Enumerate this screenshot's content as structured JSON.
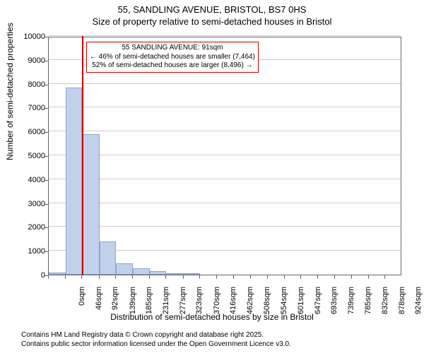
{
  "title": {
    "line1": "55, SANDLING AVENUE, BRISTOL, BS7 0HS",
    "line2": "Size of property relative to semi-detached houses in Bristol"
  },
  "chart": {
    "type": "histogram",
    "xlabel": "Distribution of semi-detached houses by size in Bristol",
    "ylabel": "Number of semi-detached properties",
    "ylim": [
      0,
      10000
    ],
    "ytick_step": 1000,
    "yticks": [
      0,
      1000,
      2000,
      3000,
      4000,
      5000,
      6000,
      7000,
      8000,
      9000,
      10000
    ],
    "xlim": [
      0,
      970
    ],
    "xticks": [
      "0sqm",
      "46sqm",
      "92sqm",
      "139sqm",
      "185sqm",
      "231sqm",
      "277sqm",
      "323sqm",
      "370sqm",
      "416sqm",
      "462sqm",
      "508sqm",
      "554sqm",
      "601sqm",
      "647sqm",
      "693sqm",
      "739sqm",
      "785sqm",
      "832sqm",
      "878sqm",
      "924sqm"
    ],
    "xtick_positions": [
      0,
      46,
      92,
      139,
      185,
      231,
      277,
      323,
      370,
      416,
      462,
      508,
      554,
      601,
      647,
      693,
      739,
      785,
      832,
      878,
      924
    ],
    "bars": [
      {
        "x_start": 0,
        "x_end": 46,
        "value": 100
      },
      {
        "x_start": 46,
        "x_end": 92,
        "value": 7850
      },
      {
        "x_start": 92,
        "x_end": 139,
        "value": 5900
      },
      {
        "x_start": 139,
        "x_end": 185,
        "value": 1380
      },
      {
        "x_start": 185,
        "x_end": 231,
        "value": 480
      },
      {
        "x_start": 231,
        "x_end": 277,
        "value": 260
      },
      {
        "x_start": 277,
        "x_end": 323,
        "value": 140
      },
      {
        "x_start": 323,
        "x_end": 370,
        "value": 60
      },
      {
        "x_start": 370,
        "x_end": 416,
        "value": 40
      }
    ],
    "bar_fill": "#c2d1eb",
    "bar_border": "#8ca5d1",
    "background_color": "#ffffff",
    "grid_color": "#cccccc",
    "axis_color": "#666666",
    "marker": {
      "x": 91,
      "color": "#cc0000",
      "width": 2
    },
    "annotation": {
      "line1": "55 SANDLING AVENUE: 91sqm",
      "line2": "← 46% of semi-detached houses are smaller (7,464)",
      "line3": "52% of semi-detached houses are larger (8,496) →",
      "border_color": "#cc0000",
      "background": "#ffffff",
      "fontsize": 10
    },
    "title_fontsize": 13,
    "label_fontsize": 12,
    "tick_fontsize": 11
  },
  "footer": {
    "line1": "Contains HM Land Registry data © Crown copyright and database right 2025.",
    "line2": "Contains public sector information licensed under the Open Government Licence v3.0."
  }
}
